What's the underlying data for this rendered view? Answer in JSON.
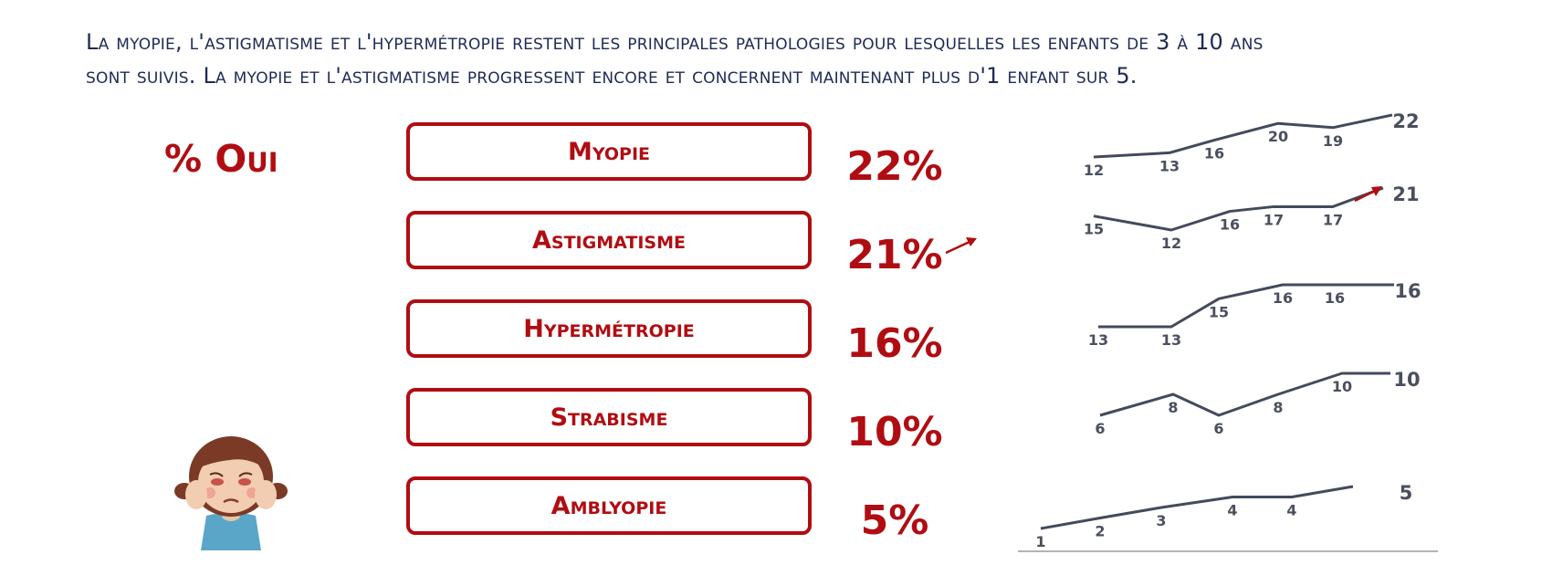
{
  "intro": {
    "line1": "La myopie, l'astigmatisme et l'hypermétropie restent les principales pathologies pour lesquelles les enfants de 3 à 10 ans",
    "line2": "sont suivis. La myopie et l'astigmatisme progressent encore et concernent maintenant plus d'1 enfant sur 5."
  },
  "pct_title": "% Oui",
  "colors": {
    "accent": "#b00d12",
    "text_blue": "#1f2a55",
    "spark_line": "#444a5c",
    "spark_label": "#4a4f5e"
  },
  "icons": [
    "trend-up-arrow-icon",
    "trend-up-arrow-icon",
    "child-rubbing-eyes-illustration"
  ],
  "chart_data": {
    "type": "line",
    "ylabel": "% Oui",
    "series": [
      {
        "name": "Myopie",
        "current_label": "22%",
        "values": [
          12,
          13,
          16,
          20,
          19,
          22
        ],
        "trend_up": false
      },
      {
        "name": "Astigmatisme",
        "current_label": "21%",
        "values": [
          15,
          12,
          16,
          17,
          17,
          21
        ],
        "trend_up": true
      },
      {
        "name": "Hypermétropie",
        "current_label": "16%",
        "values": [
          13,
          13,
          15,
          16,
          16,
          16
        ],
        "trend_up": false
      },
      {
        "name": "Strabisme",
        "current_label": "10%",
        "values": [
          6,
          8,
          6,
          8,
          10,
          10
        ],
        "trend_up": false
      },
      {
        "name": "Amblyopie",
        "current_label": "5%",
        "values": [
          1,
          2,
          3,
          4,
          4,
          5
        ],
        "trend_up": false
      }
    ]
  }
}
